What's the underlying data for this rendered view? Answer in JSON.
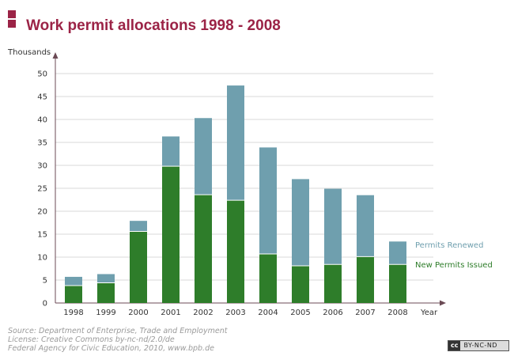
{
  "header": {
    "title": "Work permit allocations 1998 - 2008"
  },
  "source": {
    "line1": "Source: Department of Enterprise, Trade and Employment",
    "line2": "License: Creative Commons by-nc-nd/2.0/de",
    "line3": "Federal Agency for Civic Education, 2010, www.bpb.de"
  },
  "license_badge": {
    "cc": "cc",
    "text": "BY-NC-ND"
  },
  "colors": {
    "accent": "#9b2346",
    "new_permits": "#2e7d2a",
    "renewed": "#6f9fae",
    "grid": "#d8d8d8",
    "axis": "#6b4a55"
  },
  "chart_data": {
    "type": "bar",
    "stacked": true,
    "categories": [
      "1998",
      "1999",
      "2000",
      "2001",
      "2002",
      "2003",
      "2004",
      "2005",
      "2006",
      "2007",
      "2008"
    ],
    "series": [
      {
        "name": "New Permits Issued",
        "values": [
          3.8,
          4.4,
          15.6,
          29.8,
          23.6,
          22.4,
          10.7,
          8.1,
          8.4,
          10.1,
          8.4
        ]
      },
      {
        "name": "Permits Renewed",
        "values": [
          1.9,
          1.9,
          2.3,
          6.5,
          16.7,
          25.0,
          23.2,
          18.9,
          16.5,
          13.4,
          5.0
        ]
      }
    ],
    "ylabel": "Thousands",
    "xlabel": "Year",
    "ylim": [
      0,
      50
    ],
    "yticks": [
      0,
      5,
      10,
      15,
      20,
      25,
      30,
      35,
      40,
      45,
      50
    ],
    "grid": true,
    "legend_placement": "right"
  }
}
